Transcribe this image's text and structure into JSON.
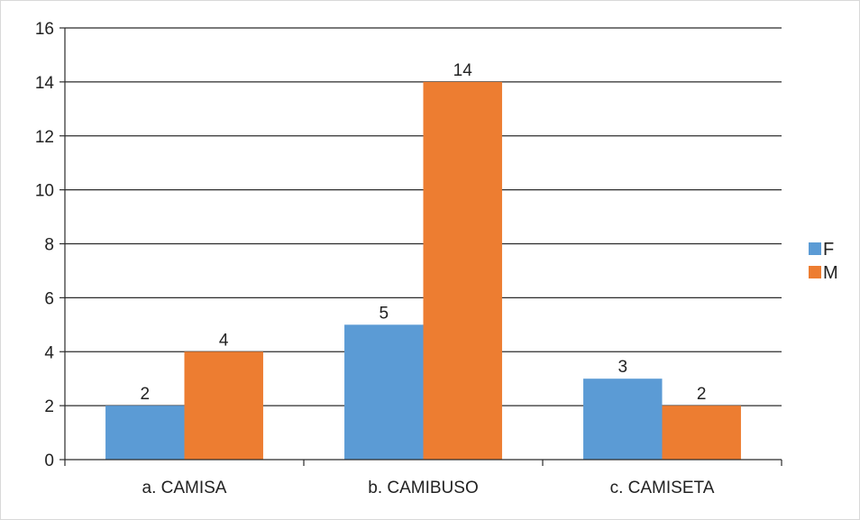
{
  "chart_data": {
    "type": "bar",
    "title": "",
    "xlabel": "",
    "ylabel": "",
    "categories": [
      "a. CAMISA",
      "b. CAMIBUSO",
      "c. CAMISETA"
    ],
    "series": [
      {
        "name": "F",
        "values": [
          2,
          5,
          3
        ],
        "color": "#5b9bd5"
      },
      {
        "name": "M",
        "values": [
          4,
          14,
          2
        ],
        "color": "#ed7d31"
      }
    ],
    "ylim": [
      0,
      16
    ],
    "yticks": [
      0,
      2,
      4,
      6,
      8,
      10,
      12,
      14,
      16
    ],
    "grid": true,
    "legend_position": "right",
    "data_labels": true
  }
}
